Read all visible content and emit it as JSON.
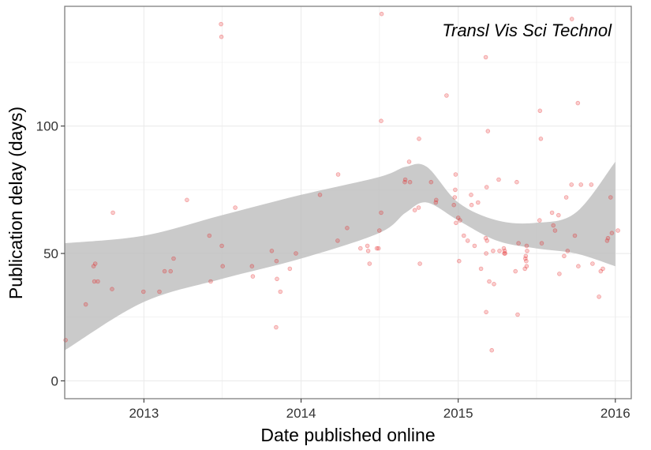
{
  "chart_data": {
    "type": "scatter",
    "annotation": "Transl Vis Sci Technol",
    "xlabel": "Date published online",
    "ylabel": "Publication delay (days)",
    "x_ticks": [
      "2013",
      "2014",
      "2015",
      "2016"
    ],
    "y_ticks": [
      0,
      50,
      100
    ],
    "xlim": [
      "2012-07-01",
      "2016-02-07"
    ],
    "ylim": [
      -7,
      147
    ],
    "grid": true,
    "colors": {
      "point": "#e41a1c",
      "ribbon": "#bdbdbd",
      "grid": "#ebebeb",
      "panel_border": "#7f7f7f"
    },
    "series": [
      {
        "type": "points",
        "points": [
          [
            "2012-07-03",
            16
          ],
          [
            "2012-08-19",
            30
          ],
          [
            "2012-09-06",
            45
          ],
          [
            "2012-09-08",
            39
          ],
          [
            "2012-09-10",
            46
          ],
          [
            "2012-09-16",
            39
          ],
          [
            "2012-10-19",
            36
          ],
          [
            "2012-10-21",
            66
          ],
          [
            "2012-12-31",
            35
          ],
          [
            "2013-02-06",
            35
          ],
          [
            "2013-02-18",
            43
          ],
          [
            "2013-03-04",
            43
          ],
          [
            "2013-03-11",
            48
          ],
          [
            "2013-04-11",
            71
          ],
          [
            "2013-06-02",
            57
          ],
          [
            "2013-06-05",
            39
          ],
          [
            "2013-06-29",
            140
          ],
          [
            "2013-06-30",
            135
          ],
          [
            "2013-07-01",
            53
          ],
          [
            "2013-07-03",
            45
          ],
          [
            "2013-08-01",
            68
          ],
          [
            "2013-09-09",
            45
          ],
          [
            "2013-09-11",
            41
          ],
          [
            "2013-10-25",
            51
          ],
          [
            "2013-11-04",
            21
          ],
          [
            "2013-11-05",
            47
          ],
          [
            "2013-11-06",
            40
          ],
          [
            "2013-11-14",
            35
          ],
          [
            "2013-12-06",
            44
          ],
          [
            "2013-12-20",
            50
          ],
          [
            "2014-02-14",
            73
          ],
          [
            "2014-03-27",
            55
          ],
          [
            "2014-03-28",
            81
          ],
          [
            "2014-04-18",
            60
          ],
          [
            "2014-05-19",
            52
          ],
          [
            "2014-06-04",
            53
          ],
          [
            "2014-06-06",
            51
          ],
          [
            "2014-06-09",
            46
          ],
          [
            "2014-06-26",
            52
          ],
          [
            "2014-06-30",
            52
          ],
          [
            "2014-07-02",
            59
          ],
          [
            "2014-07-06",
            66
          ],
          [
            "2014-07-06",
            102
          ],
          [
            "2014-07-07",
            144
          ],
          [
            "2014-08-30",
            78
          ],
          [
            "2014-08-31",
            79
          ],
          [
            "2014-09-09",
            86
          ],
          [
            "2014-09-11",
            78
          ],
          [
            "2014-09-22",
            67
          ],
          [
            "2014-10-01",
            68
          ],
          [
            "2014-10-02",
            95
          ],
          [
            "2014-10-04",
            46
          ],
          [
            "2014-10-30",
            78
          ],
          [
            "2014-11-10",
            70
          ],
          [
            "2014-11-11",
            71
          ],
          [
            "2014-12-05",
            112
          ],
          [
            "2014-12-22",
            69
          ],
          [
            "2014-12-24",
            72
          ],
          [
            "2014-12-25",
            75
          ],
          [
            "2014-12-26",
            81
          ],
          [
            "2014-12-27",
            62
          ],
          [
            "2015-01-01",
            64
          ],
          [
            "2015-01-03",
            47
          ],
          [
            "2015-01-05",
            63
          ],
          [
            "2015-01-14",
            57
          ],
          [
            "2015-01-23",
            55
          ],
          [
            "2015-01-31",
            73
          ],
          [
            "2015-02-01",
            69
          ],
          [
            "2015-02-08",
            53
          ],
          [
            "2015-02-16",
            70
          ],
          [
            "2015-02-23",
            44
          ],
          [
            "2015-03-06",
            127
          ],
          [
            "2015-03-06",
            56
          ],
          [
            "2015-03-07",
            50
          ],
          [
            "2015-03-07",
            27
          ],
          [
            "2015-03-08",
            76
          ],
          [
            "2015-03-09",
            55
          ],
          [
            "2015-03-11",
            98
          ],
          [
            "2015-03-14",
            39
          ],
          [
            "2015-03-20",
            12
          ],
          [
            "2015-03-23",
            51
          ],
          [
            "2015-03-25",
            38
          ],
          [
            "2015-04-05",
            79
          ],
          [
            "2015-04-07",
            51
          ],
          [
            "2015-04-17",
            52
          ],
          [
            "2015-04-18",
            50
          ],
          [
            "2015-04-19",
            51
          ],
          [
            "2015-04-20",
            50
          ],
          [
            "2015-05-14",
            43
          ],
          [
            "2015-05-17",
            78
          ],
          [
            "2015-05-19",
            26
          ],
          [
            "2015-05-21",
            54
          ],
          [
            "2015-06-05",
            44
          ],
          [
            "2015-06-06",
            48
          ],
          [
            "2015-06-07",
            49
          ],
          [
            "2015-06-08",
            47
          ],
          [
            "2015-06-09",
            53
          ],
          [
            "2015-06-09",
            45
          ],
          [
            "2015-06-10",
            51
          ],
          [
            "2015-07-09",
            63
          ],
          [
            "2015-07-10",
            106
          ],
          [
            "2015-07-12",
            95
          ],
          [
            "2015-07-14",
            54
          ],
          [
            "2015-08-07",
            66
          ],
          [
            "2015-08-10",
            61
          ],
          [
            "2015-08-14",
            59
          ],
          [
            "2015-08-22",
            65
          ],
          [
            "2015-08-24",
            42
          ],
          [
            "2015-09-04",
            49
          ],
          [
            "2015-09-09",
            72
          ],
          [
            "2015-09-12",
            51
          ],
          [
            "2015-09-21",
            77
          ],
          [
            "2015-09-22",
            142
          ],
          [
            "2015-09-29",
            57
          ],
          [
            "2015-10-06",
            109
          ],
          [
            "2015-10-07",
            45
          ],
          [
            "2015-10-13",
            77
          ],
          [
            "2015-11-06",
            77
          ],
          [
            "2015-11-09",
            46
          ],
          [
            "2015-11-24",
            33
          ],
          [
            "2015-11-28",
            43
          ],
          [
            "2015-12-03",
            44
          ],
          [
            "2015-12-13",
            55
          ],
          [
            "2015-12-15",
            56
          ],
          [
            "2015-12-21",
            72
          ],
          [
            "2015-12-24",
            58
          ],
          [
            "2016-01-07",
            59
          ]
        ]
      },
      {
        "type": "smooth",
        "x": [
          "2012-07-01",
          "2013-01-01",
          "2013-07-01",
          "2014-01-01",
          "2014-07-01",
          "2014-09-01",
          "2014-10-20",
          "2015-01-01",
          "2015-04-01",
          "2015-07-01",
          "2015-10-01",
          "2016-01-01"
        ],
        "lower": [
          12,
          31,
          40,
          48,
          58,
          66,
          70,
          63,
          55,
          52,
          50,
          45
        ],
        "upper": [
          54,
          57,
          65,
          73,
          80,
          84,
          84,
          70,
          63,
          62,
          66,
          86
        ]
      }
    ]
  }
}
